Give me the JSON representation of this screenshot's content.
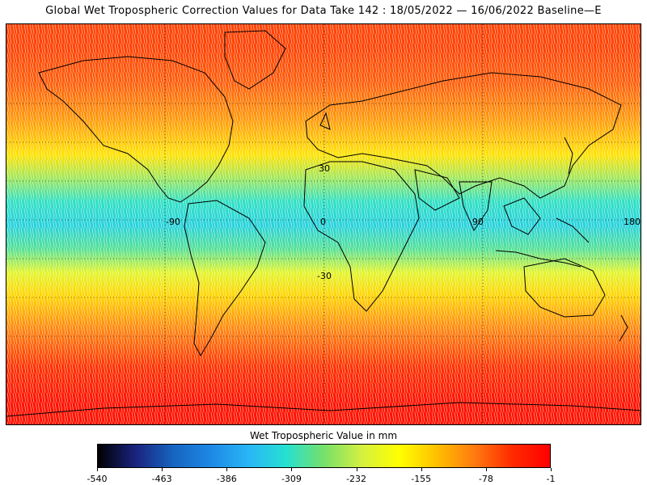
{
  "title": "Global Wet Tropospheric Correction Values for Data Take 142 : 18/05/2022 — 16/06/2022 Baseline—E",
  "colorbar": {
    "label": "Wet Tropospheric Value in mm",
    "ticks": [
      "-540",
      "-463",
      "-386",
      "-309",
      "-232",
      "-155",
      "-78",
      "-1"
    ],
    "range": [
      -540,
      -1
    ],
    "colors": [
      "#000000",
      "#1a237e",
      "#1565c0",
      "#1e88e5",
      "#29b6f6",
      "#26e0d0",
      "#76e06a",
      "#d4f040",
      "#ffff00",
      "#ffc000",
      "#ff7a10",
      "#ff2a00",
      "#ff0000"
    ]
  },
  "map": {
    "longitude_labels": [
      "-90",
      "0",
      "90",
      "180"
    ],
    "latitude_labels": [
      "30",
      "-30"
    ]
  },
  "chart_data": {
    "type": "heatmap",
    "title": "Global Wet Tropospheric Correction Values for Data Take 142 : 18/05/2022 — 16/06/2022 Baseline—E",
    "legend_title": "Wet Tropospheric Value in mm",
    "value_range": [
      -540,
      -1
    ],
    "zonal_profile": {
      "latitude": [
        75,
        60,
        45,
        30,
        20,
        10,
        0,
        -10,
        -20,
        -30,
        -45,
        -60,
        -75
      ],
      "value": [
        -60,
        -75,
        -110,
        -160,
        -250,
        -310,
        -330,
        -290,
        -210,
        -150,
        -95,
        -50,
        -20
      ]
    }
  }
}
